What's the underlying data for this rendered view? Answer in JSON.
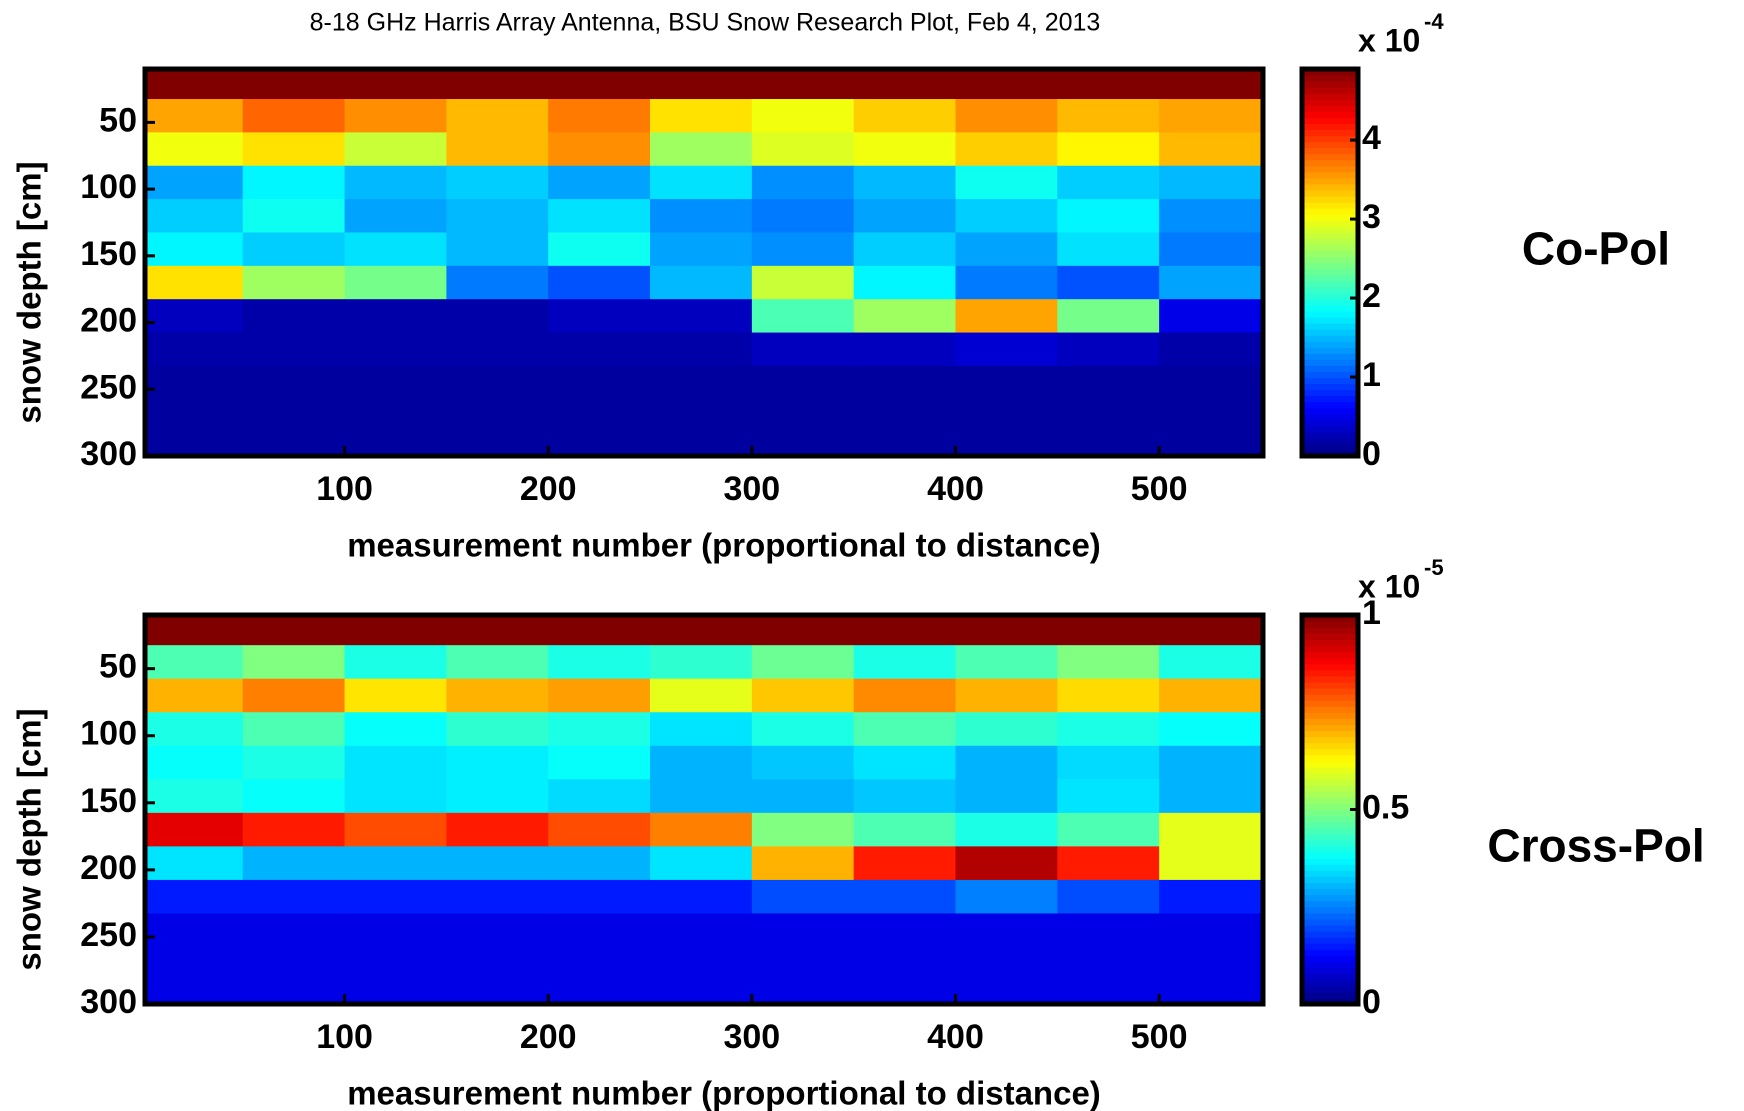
{
  "chart_data": [
    {
      "type": "heatmap",
      "title": "8-18 GHz Harris Array  Antenna, BSU Snow Research Plot, Feb 4, 2013",
      "xlabel": "measurement number (proportional to distance)",
      "ylabel": "snow depth [cm]",
      "annotation": "Co-Pol",
      "colorbar_label": "x 10",
      "colorbar_exponent": "-4",
      "xlim": [
        2,
        551
      ],
      "ylim": [
        300,
        10
      ],
      "xticks": [
        100,
        200,
        300,
        400,
        500
      ],
      "yticks": [
        50,
        100,
        150,
        200,
        250,
        300
      ],
      "clim": [
        0,
        4.9
      ],
      "cticks": [
        0,
        1,
        2,
        3,
        4
      ],
      "x": [
        25,
        75,
        125,
        175,
        225,
        275,
        325,
        375,
        425,
        475,
        525
      ],
      "y": [
        20,
        45,
        70,
        95,
        120,
        145,
        170,
        195,
        220,
        245,
        270,
        295
      ],
      "values": [
        [
          4.9,
          4.9,
          4.9,
          4.9,
          4.9,
          4.9,
          4.9,
          4.9,
          4.9,
          4.9,
          4.9
        ],
        [
          3.5,
          3.8,
          3.6,
          3.4,
          3.7,
          3.2,
          3.0,
          3.3,
          3.6,
          3.4,
          3.5
        ],
        [
          3.0,
          3.2,
          2.8,
          3.4,
          3.6,
          2.6,
          2.9,
          3.0,
          3.3,
          3.1,
          3.4
        ],
        [
          1.4,
          1.8,
          1.5,
          1.6,
          1.4,
          1.7,
          1.3,
          1.5,
          1.9,
          1.6,
          1.5
        ],
        [
          1.6,
          1.9,
          1.4,
          1.5,
          1.7,
          1.3,
          1.2,
          1.4,
          1.6,
          1.8,
          1.3
        ],
        [
          1.8,
          1.6,
          1.7,
          1.5,
          1.9,
          1.4,
          1.3,
          1.6,
          1.4,
          1.7,
          1.2
        ],
        [
          3.2,
          2.6,
          2.4,
          1.2,
          1.0,
          1.5,
          2.8,
          1.8,
          1.2,
          1.0,
          1.4
        ],
        [
          0.3,
          0.2,
          0.2,
          0.2,
          0.3,
          0.3,
          2.2,
          2.6,
          3.5,
          2.4,
          0.5
        ],
        [
          0.2,
          0.2,
          0.2,
          0.2,
          0.2,
          0.2,
          0.3,
          0.3,
          0.4,
          0.3,
          0.2
        ],
        [
          0.15,
          0.15,
          0.15,
          0.15,
          0.15,
          0.15,
          0.15,
          0.15,
          0.15,
          0.15,
          0.15
        ],
        [
          0.15,
          0.15,
          0.15,
          0.15,
          0.15,
          0.15,
          0.15,
          0.15,
          0.15,
          0.15,
          0.15
        ],
        [
          0.15,
          0.15,
          0.15,
          0.15,
          0.15,
          0.15,
          0.15,
          0.15,
          0.15,
          0.15,
          0.15
        ]
      ]
    },
    {
      "type": "heatmap",
      "xlabel": "measurement number (proportional to distance)",
      "ylabel": "snow depth [cm]",
      "annotation": "Cross-Pol",
      "colorbar_label": "x 10",
      "colorbar_exponent": "-5",
      "xlim": [
        2,
        551
      ],
      "ylim": [
        300,
        10
      ],
      "xticks": [
        100,
        200,
        300,
        400,
        500
      ],
      "yticks": [
        50,
        100,
        150,
        200,
        250,
        300
      ],
      "clim": [
        0,
        1
      ],
      "cticks": [
        0,
        0.5,
        1
      ],
      "x": [
        25,
        75,
        125,
        175,
        225,
        275,
        325,
        375,
        425,
        475,
        525
      ],
      "y": [
        20,
        45,
        70,
        95,
        120,
        145,
        170,
        195,
        220,
        245,
        270,
        295
      ],
      "values": [
        [
          1,
          1,
          1,
          1,
          1,
          1,
          1,
          1,
          1,
          1,
          1
        ],
        [
          0.45,
          0.5,
          0.4,
          0.45,
          0.4,
          0.42,
          0.48,
          0.4,
          0.45,
          0.5,
          0.4
        ],
        [
          0.7,
          0.75,
          0.65,
          0.7,
          0.72,
          0.6,
          0.68,
          0.74,
          0.7,
          0.66,
          0.7
        ],
        [
          0.4,
          0.45,
          0.38,
          0.42,
          0.4,
          0.35,
          0.4,
          0.45,
          0.42,
          0.4,
          0.38
        ],
        [
          0.38,
          0.4,
          0.35,
          0.36,
          0.38,
          0.3,
          0.32,
          0.35,
          0.3,
          0.34,
          0.3
        ],
        [
          0.4,
          0.38,
          0.35,
          0.36,
          0.34,
          0.3,
          0.3,
          0.32,
          0.3,
          0.35,
          0.3
        ],
        [
          0.9,
          0.85,
          0.8,
          0.85,
          0.8,
          0.75,
          0.5,
          0.45,
          0.4,
          0.45,
          0.6
        ],
        [
          0.35,
          0.3,
          0.3,
          0.3,
          0.3,
          0.35,
          0.7,
          0.85,
          0.95,
          0.85,
          0.6
        ],
        [
          0.15,
          0.15,
          0.15,
          0.15,
          0.15,
          0.15,
          0.2,
          0.2,
          0.25,
          0.2,
          0.15
        ],
        [
          0.1,
          0.1,
          0.1,
          0.1,
          0.1,
          0.1,
          0.1,
          0.1,
          0.1,
          0.1,
          0.1
        ],
        [
          0.1,
          0.1,
          0.1,
          0.1,
          0.1,
          0.1,
          0.1,
          0.1,
          0.1,
          0.1,
          0.1
        ],
        [
          0.1,
          0.1,
          0.1,
          0.1,
          0.1,
          0.1,
          0.1,
          0.1,
          0.1,
          0.1,
          0.1
        ]
      ]
    }
  ]
}
